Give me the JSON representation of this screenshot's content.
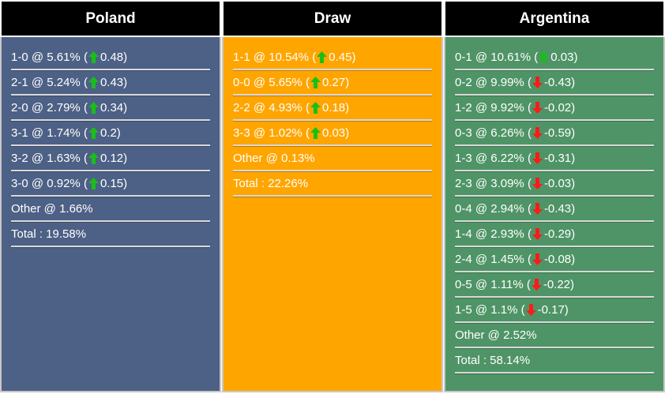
{
  "columns": [
    {
      "title": "Poland",
      "bg": "#4d6085",
      "rows": [
        {
          "score": "1-0",
          "pct": "5.61%",
          "dir": "up",
          "chg": "0.48"
        },
        {
          "score": "2-1",
          "pct": "5.24%",
          "dir": "up",
          "chg": "0.43"
        },
        {
          "score": "2-0",
          "pct": "2.79%",
          "dir": "up",
          "chg": "0.34"
        },
        {
          "score": "3-1",
          "pct": "1.74%",
          "dir": "up",
          "chg": "0.2"
        },
        {
          "score": "3-2",
          "pct": "1.63%",
          "dir": "up",
          "chg": "0.12"
        },
        {
          "score": "3-0",
          "pct": "0.92%",
          "dir": "up",
          "chg": "0.15"
        }
      ],
      "other": "Other @ 1.66%",
      "total": "Total : 19.58%"
    },
    {
      "title": "Draw",
      "bg": "#ffa500",
      "rows": [
        {
          "score": "1-1",
          "pct": "10.54%",
          "dir": "up",
          "chg": "0.45"
        },
        {
          "score": "0-0",
          "pct": "5.65%",
          "dir": "up",
          "chg": "0.27"
        },
        {
          "score": "2-2",
          "pct": "4.93%",
          "dir": "up",
          "chg": "0.18"
        },
        {
          "score": "3-3",
          "pct": "1.02%",
          "dir": "up",
          "chg": "0.03"
        }
      ],
      "other": "Other @ 0.13%",
      "total": "Total : 22.26%"
    },
    {
      "title": "Argentina",
      "bg": "#4f9466",
      "rows": [
        {
          "score": "0-1",
          "pct": "10.61%",
          "dir": "up",
          "chg": "0.03"
        },
        {
          "score": "0-2",
          "pct": "9.99%",
          "dir": "down",
          "chg": "-0.43"
        },
        {
          "score": "1-2",
          "pct": "9.92%",
          "dir": "down",
          "chg": "-0.02"
        },
        {
          "score": "0-3",
          "pct": "6.26%",
          "dir": "down",
          "chg": "-0.59"
        },
        {
          "score": "1-3",
          "pct": "6.22%",
          "dir": "down",
          "chg": "-0.31"
        },
        {
          "score": "2-3",
          "pct": "3.09%",
          "dir": "down",
          "chg": "-0.03"
        },
        {
          "score": "0-4",
          "pct": "2.94%",
          "dir": "down",
          "chg": "-0.43"
        },
        {
          "score": "1-4",
          "pct": "2.93%",
          "dir": "down",
          "chg": "-0.29"
        },
        {
          "score": "2-4",
          "pct": "1.45%",
          "dir": "down",
          "chg": "-0.08"
        },
        {
          "score": "0-5",
          "pct": "1.11%",
          "dir": "down",
          "chg": "-0.22"
        },
        {
          "score": "1-5",
          "pct": "1.1%",
          "dir": "down",
          "chg": "-0.17"
        }
      ],
      "other": "Other @ 2.52%",
      "total": "Total : 58.14%"
    }
  ],
  "icons": {
    "up": "arrow-up-icon",
    "down": "arrow-down-icon"
  }
}
